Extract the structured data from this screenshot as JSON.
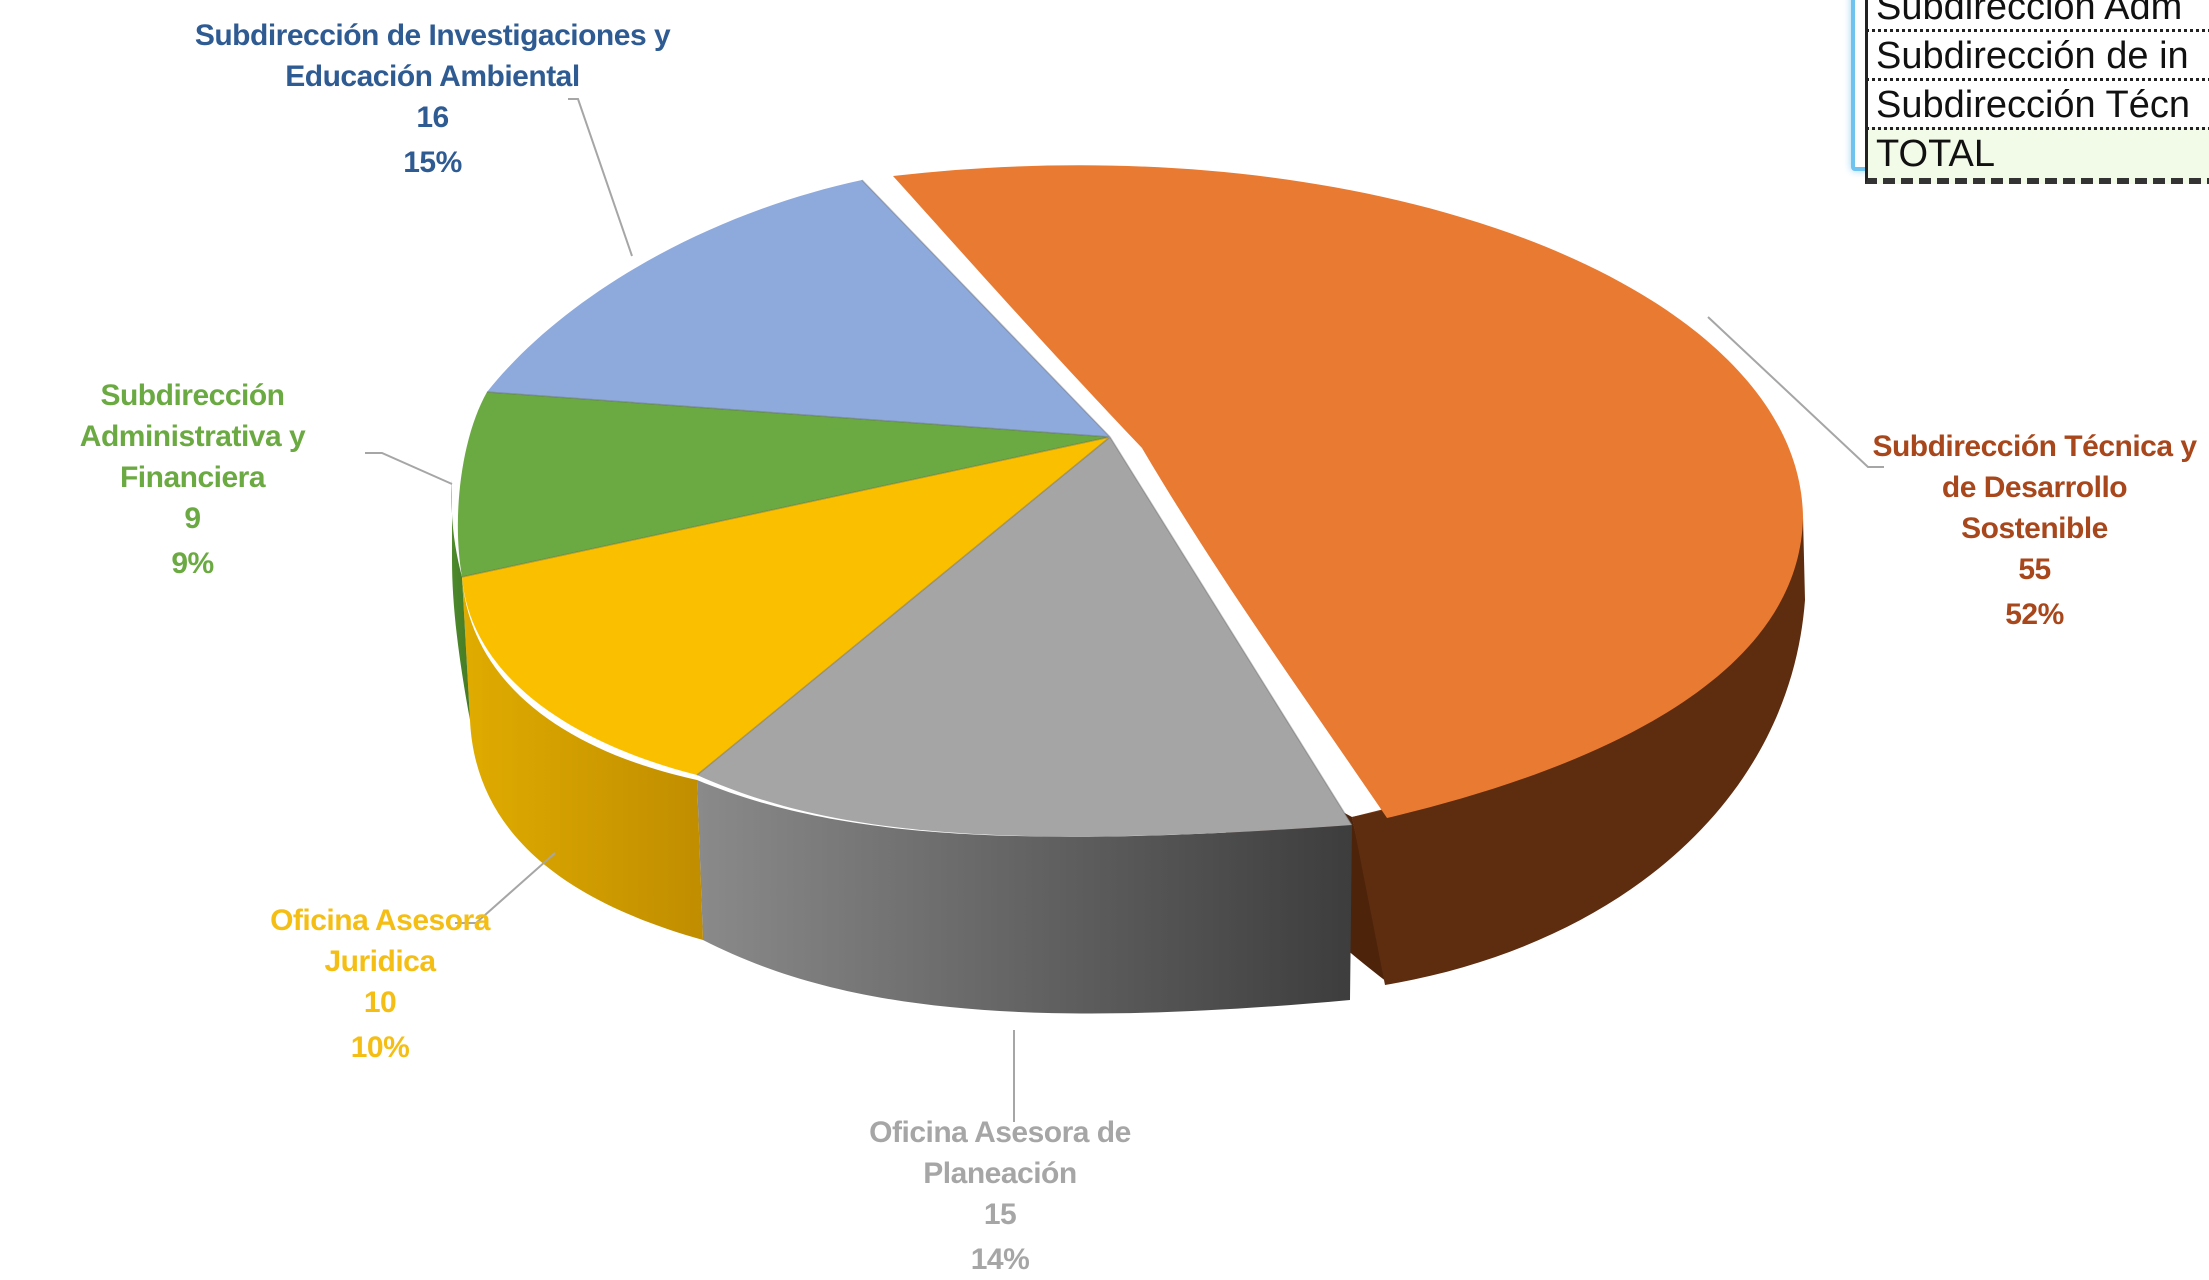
{
  "chart_data": {
    "type": "pie",
    "title": "",
    "slices": [
      {
        "name": "Subdirección Técnica y de Desarrollo Sostenible",
        "value": 55,
        "percent": "52%",
        "color": "#E97A32",
        "side": "#5B2B0E",
        "exploded": true
      },
      {
        "name": "Oficina Asesora de Planeación",
        "value": 15,
        "percent": "14%",
        "color": "#A5A5A5",
        "side": "#4A4A4A"
      },
      {
        "name": "Oficina Asesora Juridica",
        "value": 10,
        "percent": "10%",
        "color": "#FAC000",
        "side": "#C99600"
      },
      {
        "name": "Subdirección Administrativa y Financiera",
        "value": 9,
        "percent": "9%",
        "color": "#6BAA42",
        "side": "#457A25"
      },
      {
        "name": "Subdirección de Investigaciones y Educación Ambiental",
        "value": 16,
        "percent": "15%",
        "color": "#8EA9DB",
        "side": "#5873A8"
      }
    ]
  },
  "labels": {
    "tecnica": {
      "line1": "Subdirección Técnica y",
      "line2": "de Desarrollo Sostenible",
      "value": "55",
      "percent": "52%",
      "color": "#A9471C"
    },
    "planeacion": {
      "line1": "Oficina Asesora de Planeación",
      "value": "15",
      "percent": "14%",
      "color": "#A6A6A6"
    },
    "juridica": {
      "line1": "Oficina Asesora",
      "line2": "Juridica",
      "value": "10",
      "percent": "10%",
      "color": "#F5BE14"
    },
    "administrativa": {
      "line1": "Subdirección",
      "line2": "Administrativa y Financiera",
      "value": "9",
      "percent": "9%",
      "color": "#6BAA42"
    },
    "investigaciones": {
      "line1": "Subdirección de Investigaciones y",
      "line2": "Educación Ambiental",
      "value": "16",
      "percent": "15%",
      "color": "#2F5B93"
    }
  },
  "table": {
    "rows": [
      "Subdirección Adm",
      "Subdirección de in",
      "Subdirección Técn",
      "TOTAL"
    ]
  }
}
